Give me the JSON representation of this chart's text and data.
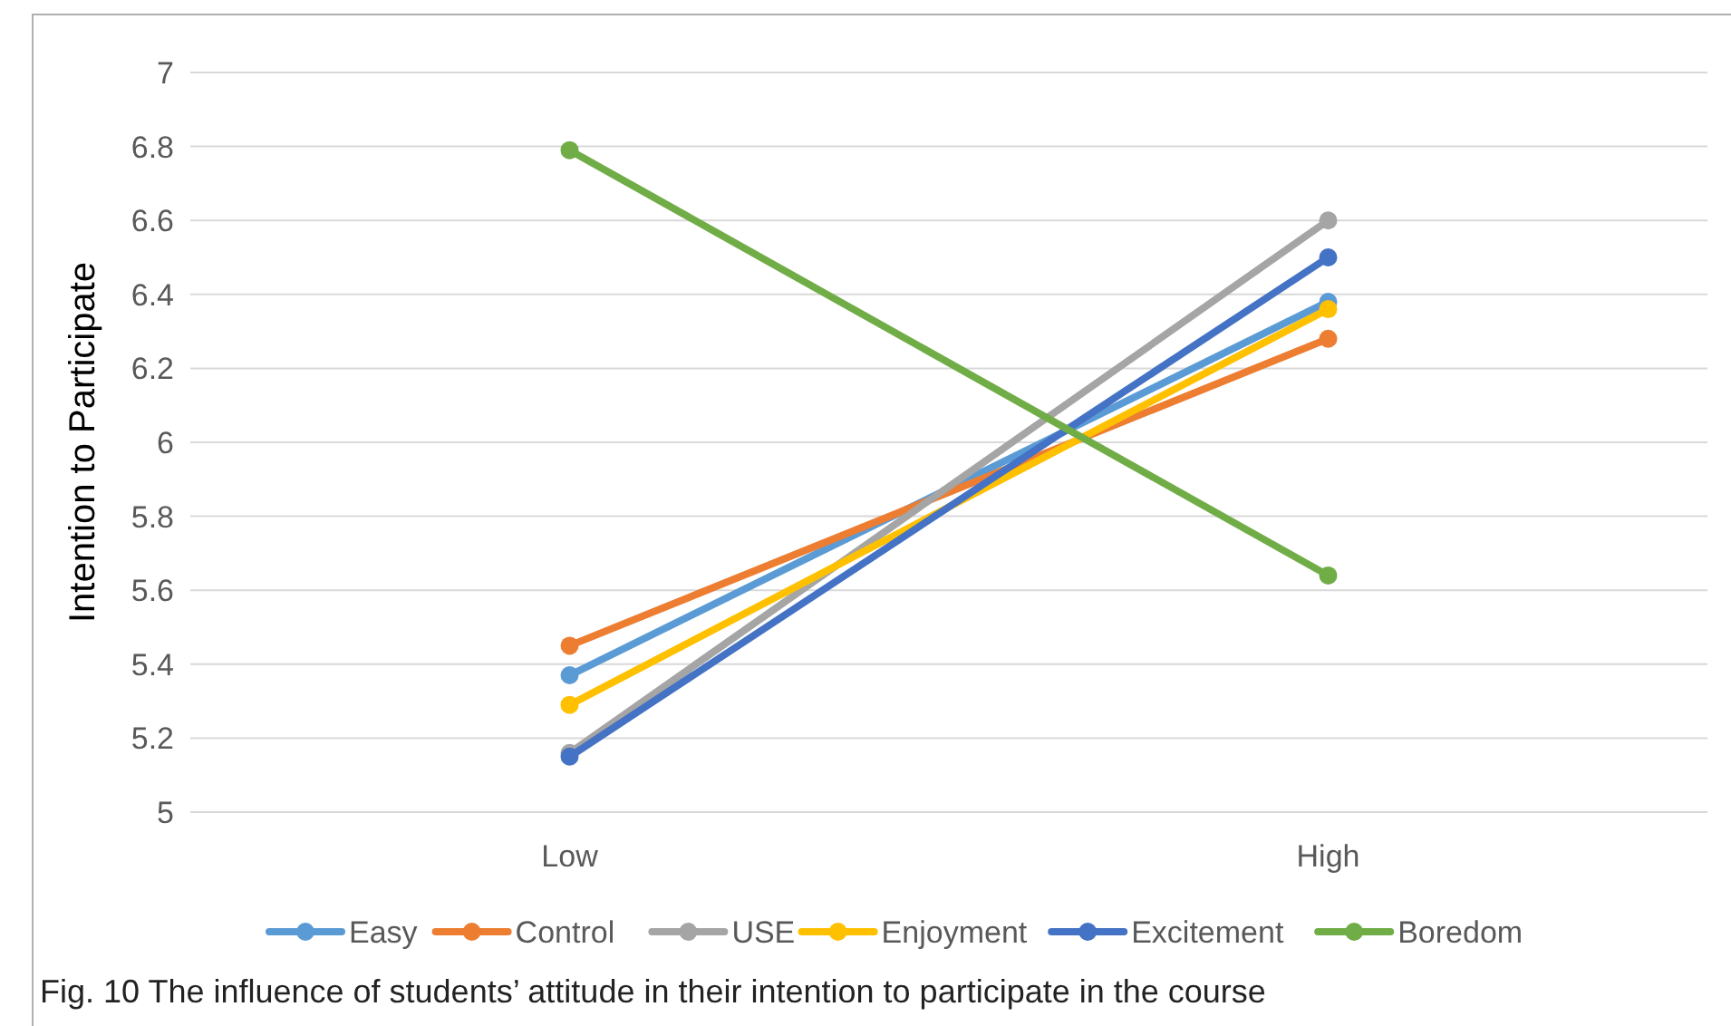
{
  "chart_data": {
    "type": "line",
    "ylabel": "Intention to Participate",
    "categories": [
      "Low",
      "High"
    ],
    "series": [
      {
        "name": "Easy",
        "color": "#5b9bd5",
        "values": [
          5.37,
          6.38
        ]
      },
      {
        "name": "Control",
        "color": "#ed7d31",
        "values": [
          5.45,
          6.28
        ]
      },
      {
        "name": "USE",
        "color": "#a5a5a5",
        "values": [
          5.16,
          6.6
        ]
      },
      {
        "name": "Enjoyment",
        "color": "#ffc000",
        "values": [
          5.29,
          6.36
        ]
      },
      {
        "name": "Excitement",
        "color": "#4472c4",
        "values": [
          5.15,
          6.5
        ]
      },
      {
        "name": "Boredom",
        "color": "#70ad47",
        "values": [
          6.79,
          5.64
        ]
      }
    ],
    "ylim": [
      5,
      7
    ],
    "yticks": [
      5,
      5.2,
      5.4,
      5.6,
      5.8,
      6,
      6.2,
      6.4,
      6.6,
      6.8,
      7
    ],
    "grid": "y",
    "legend": "bottom",
    "marker": "circle",
    "line_style": "solid",
    "annotations": [
      "Fig. 10 The influence of students’ attitude in their intention to participate in the course"
    ]
  }
}
